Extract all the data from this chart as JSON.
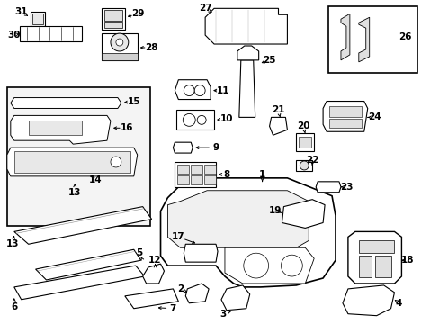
{
  "bg_color": "#ffffff",
  "line_color": "#000000",
  "label_fontsize": 7.5,
  "arrow_lw": 0.7,
  "part_lw": 0.8
}
